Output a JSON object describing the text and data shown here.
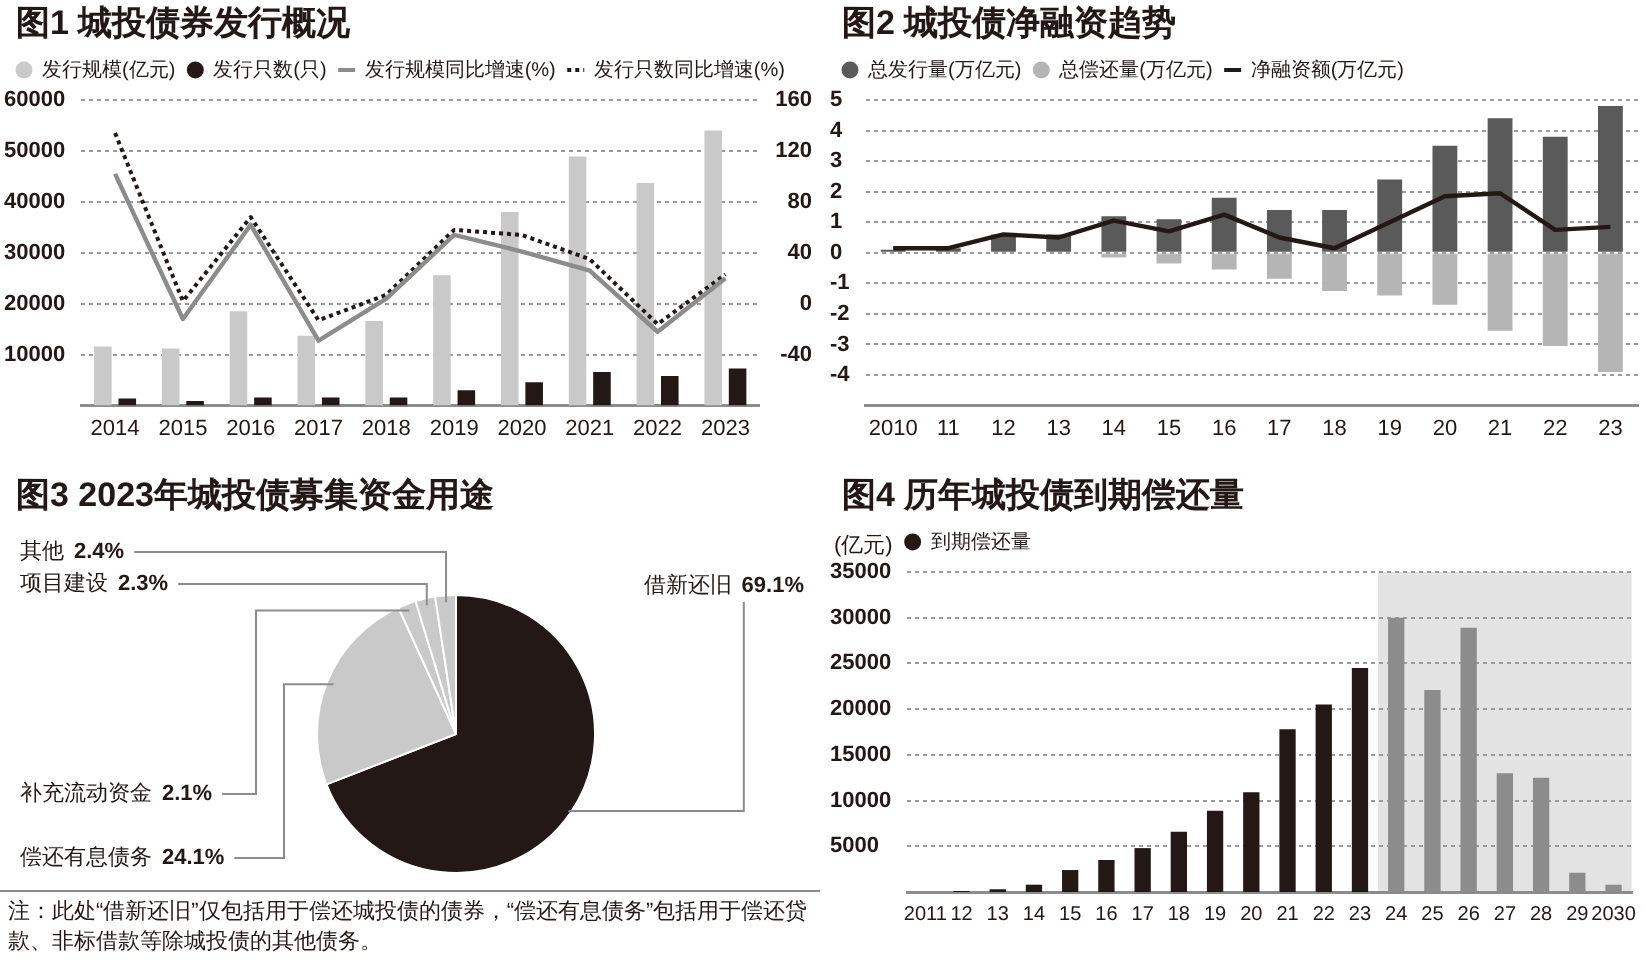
{
  "chart_data": [
    {
      "type": "bar",
      "title": "图1 城投债券发行概况",
      "categories": [
        "2014",
        "2015",
        "2016",
        "2017",
        "2018",
        "2019",
        "2020",
        "2021",
        "2022",
        "2023"
      ],
      "series": [
        {
          "name": "发行规模(亿元)",
          "color": "#c9c9c9",
          "values": [
            11600,
            11200,
            18500,
            13700,
            16600,
            25600,
            38000,
            48900,
            43700,
            54000
          ]
        },
        {
          "name": "发行只数(只)",
          "color": "#231815",
          "values": [
            1400,
            900,
            1600,
            1600,
            1600,
            3000,
            4600,
            6600,
            5800,
            7300
          ]
        },
        {
          "name": "发行规模同比增速(%)",
          "type": "line",
          "axis": "y2",
          "color": "#8c8c8c",
          "line_style": "solid",
          "values": [
            102,
            -12,
            62,
            -29,
            4,
            54,
            41,
            26,
            -22,
            20
          ]
        },
        {
          "name": "发行只数同比增速(%)",
          "type": "line",
          "axis": "y2",
          "color": "#231815",
          "line_style": "dotted",
          "values": [
            134,
            2,
            68,
            -13,
            7,
            58,
            54,
            35,
            -16,
            23
          ]
        }
      ],
      "ylim": [
        0,
        60000
      ],
      "yticks": [
        10000,
        20000,
        30000,
        40000,
        50000,
        60000
      ],
      "y2lim": [
        -80,
        160
      ],
      "y2ticks": [
        -40,
        0,
        40,
        80,
        120,
        160
      ],
      "grid": "y",
      "legend": "top left",
      "marker": "none"
    },
    {
      "type": "bar",
      "title": "图2 城投债净融资趋势",
      "categories": [
        "2010",
        "11",
        "12",
        "13",
        "14",
        "15",
        "16",
        "17",
        "18",
        "19",
        "20",
        "21",
        "22",
        "23"
      ],
      "stacked": true,
      "series": [
        {
          "name": "总发行量(万亿元)",
          "color": "#5a5a5a",
          "values": [
            0.1,
            0.15,
            0.6,
            0.6,
            1.2,
            1.1,
            1.8,
            1.4,
            1.4,
            2.4,
            3.5,
            4.4,
            3.8,
            4.8
          ]
        },
        {
          "name": "总偿还量(万亿元)",
          "color": "#b5b5b5",
          "values": [
            null,
            null,
            null,
            null,
            -0.15,
            -0.35,
            -0.55,
            -0.85,
            -1.25,
            -1.4,
            -1.7,
            -2.55,
            -3.05,
            -3.9
          ]
        },
        {
          "name": "净融资额(万亿元)",
          "type": "line",
          "color": "#231815",
          "line_style": "solid",
          "values": [
            0.15,
            0.15,
            0.6,
            0.5,
            1.05,
            0.7,
            1.25,
            0.5,
            0.15,
            1.0,
            1.85,
            1.95,
            0.75,
            0.85
          ]
        }
      ],
      "ylim": [
        -5,
        5
      ],
      "yticks": [
        -4,
        -3,
        -2,
        -1,
        0,
        1,
        2,
        3,
        4,
        5
      ],
      "grid": "y",
      "legend": "top left",
      "marker": "none"
    },
    {
      "type": "pie",
      "title": "图3 2023年城投债募集资金用途",
      "categories": [
        "借新还旧",
        "偿还有息债务",
        "补充流动资金",
        "项目建设",
        "其他"
      ],
      "values": [
        69.1,
        24.1,
        2.1,
        2.3,
        2.4
      ],
      "colors": [
        "#231815",
        "#c9c9c9",
        "#c9c9c9",
        "#c9c9c9",
        "#c9c9c9"
      ],
      "value_labels": [
        "69.1%",
        "24.1%",
        "2.1%",
        "2.3%",
        "2.4%"
      ],
      "annotations": [
        "注：此处“借新还旧”仅包括用于偿还城投债的债券，“偿还有息债务”包括用于偿还贷款、非标借款等除城投债的其他债务。"
      ]
    },
    {
      "type": "bar",
      "title": "图4 历年城投债到期偿还量",
      "ylabel": "(亿元)",
      "categories": [
        "2011",
        "12",
        "13",
        "14",
        "15",
        "16",
        "17",
        "18",
        "19",
        "20",
        "21",
        "22",
        "23",
        "24",
        "25",
        "26",
        "27",
        "28",
        "29",
        "2030"
      ],
      "series": [
        {
          "name": "到期偿还量",
          "color": "#231815",
          "colors": [
            "#231815",
            "#231815",
            "#231815",
            "#231815",
            "#231815",
            "#231815",
            "#231815",
            "#231815",
            "#231815",
            "#231815",
            "#231815",
            "#231815",
            "#231815",
            "#8c8c8c",
            "#8c8c8c",
            "#8c8c8c",
            "#8c8c8c",
            "#8c8c8c",
            "#8c8c8c",
            "#8c8c8c"
          ],
          "values": [
            null,
            100,
            300,
            800,
            2400,
            3500,
            4800,
            6600,
            8900,
            10900,
            17800,
            20500,
            24500,
            30000,
            22100,
            28900,
            13000,
            12500,
            2100,
            800
          ]
        }
      ],
      "ylim": [
        0,
        35000
      ],
      "yticks": [
        5000,
        10000,
        15000,
        20000,
        25000,
        30000,
        35000
      ],
      "grid": "y",
      "legend": "top left",
      "bands": [
        {
          "axis": "x",
          "from": "24",
          "to": "2030",
          "color": "#e3e3e3"
        }
      ]
    }
  ]
}
